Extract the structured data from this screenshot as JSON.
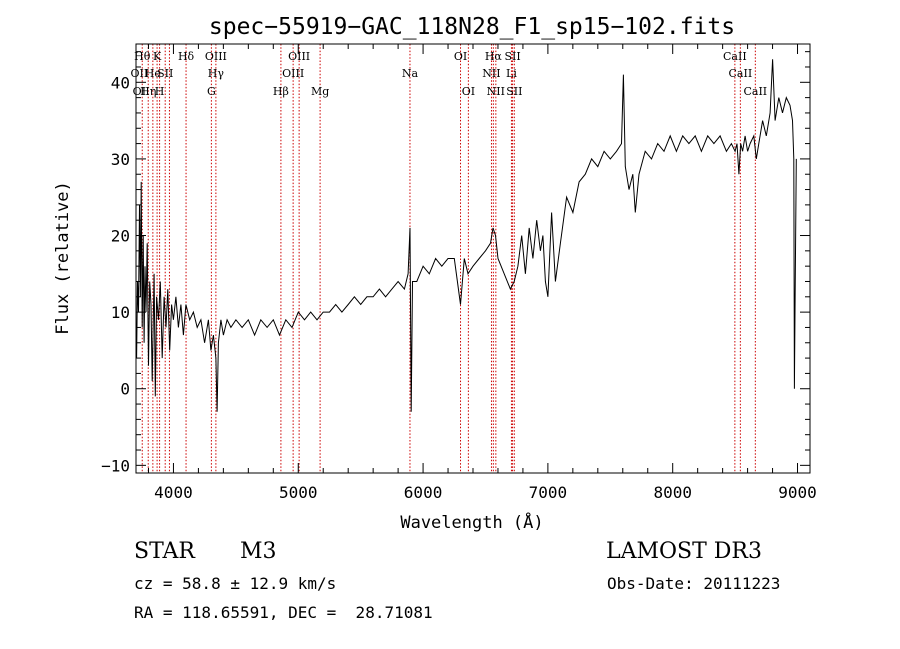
{
  "chart_data": {
    "type": "line",
    "title": "spec−55919−GAC_118N28_F1_sp15−102.fits",
    "xlabel": "Wavelength (Å)",
    "ylabel": "Flux (relative)",
    "xlim": [
      3700,
      9100
    ],
    "ylim": [
      -11,
      45
    ],
    "xticks": [
      {
        "value": 4000,
        "label": "4000"
      },
      {
        "value": 5000,
        "label": "5000"
      },
      {
        "value": 6000,
        "label": "6000"
      },
      {
        "value": 7000,
        "label": "7000"
      },
      {
        "value": 8000,
        "label": "8000"
      },
      {
        "value": 9000,
        "label": "9000"
      }
    ],
    "yticks": [
      {
        "value": -10,
        "label": "−10"
      },
      {
        "value": 0,
        "label": "0"
      },
      {
        "value": 10,
        "label": "10"
      },
      {
        "value": 20,
        "label": "20"
      },
      {
        "value": 30,
        "label": "30"
      },
      {
        "value": 40,
        "label": "40"
      }
    ],
    "line_color": "#000000",
    "marker_color": "#cc0000",
    "grid": false,
    "series": [
      {
        "values": [
          [
            3705,
            4
          ],
          [
            3712,
            14
          ],
          [
            3720,
            10
          ],
          [
            3728,
            24
          ],
          [
            3735,
            12
          ],
          [
            3742,
            27
          ],
          [
            3750,
            8
          ],
          [
            3758,
            20
          ],
          [
            3765,
            6
          ],
          [
            3772,
            16
          ],
          [
            3780,
            10
          ],
          [
            3790,
            19
          ],
          [
            3800,
            3
          ],
          [
            3810,
            14
          ],
          [
            3820,
            11
          ],
          [
            3830,
            1
          ],
          [
            3845,
            15
          ],
          [
            3855,
            -1
          ],
          [
            3865,
            12
          ],
          [
            3880,
            9
          ],
          [
            3895,
            14
          ],
          [
            3910,
            4
          ],
          [
            3925,
            12
          ],
          [
            3940,
            8
          ],
          [
            3955,
            13
          ],
          [
            3970,
            5
          ],
          [
            3985,
            11
          ],
          [
            4000,
            9
          ],
          [
            4020,
            12
          ],
          [
            4040,
            8
          ],
          [
            4060,
            11
          ],
          [
            4080,
            7
          ],
          [
            4100,
            11
          ],
          [
            4130,
            9
          ],
          [
            4160,
            10
          ],
          [
            4190,
            8
          ],
          [
            4220,
            9
          ],
          [
            4250,
            6
          ],
          [
            4280,
            9
          ],
          [
            4300,
            5
          ],
          [
            4320,
            7
          ],
          [
            4340,
            4
          ],
          [
            4350,
            -3
          ],
          [
            4360,
            6
          ],
          [
            4380,
            9
          ],
          [
            4400,
            7
          ],
          [
            4430,
            9
          ],
          [
            4460,
            8
          ],
          [
            4500,
            9
          ],
          [
            4550,
            8
          ],
          [
            4600,
            9
          ],
          [
            4650,
            7
          ],
          [
            4700,
            9
          ],
          [
            4750,
            8
          ],
          [
            4800,
            9
          ],
          [
            4850,
            7
          ],
          [
            4900,
            9
          ],
          [
            4950,
            8
          ],
          [
            5000,
            10
          ],
          [
            5050,
            9
          ],
          [
            5100,
            10
          ],
          [
            5150,
            9
          ],
          [
            5200,
            10
          ],
          [
            5250,
            10
          ],
          [
            5300,
            11
          ],
          [
            5350,
            10
          ],
          [
            5400,
            11
          ],
          [
            5450,
            12
          ],
          [
            5500,
            11
          ],
          [
            5550,
            12
          ],
          [
            5600,
            12
          ],
          [
            5650,
            13
          ],
          [
            5700,
            12
          ],
          [
            5750,
            13
          ],
          [
            5800,
            14
          ],
          [
            5850,
            13
          ],
          [
            5880,
            15
          ],
          [
            5895,
            21
          ],
          [
            5905,
            -3
          ],
          [
            5915,
            14
          ],
          [
            5950,
            14
          ],
          [
            6000,
            16
          ],
          [
            6050,
            15
          ],
          [
            6100,
            17
          ],
          [
            6150,
            16
          ],
          [
            6200,
            17
          ],
          [
            6250,
            17
          ],
          [
            6300,
            11
          ],
          [
            6330,
            17
          ],
          [
            6360,
            15
          ],
          [
            6400,
            16
          ],
          [
            6450,
            17
          ],
          [
            6500,
            18
          ],
          [
            6540,
            19
          ],
          [
            6560,
            21
          ],
          [
            6580,
            20
          ],
          [
            6600,
            17
          ],
          [
            6650,
            15
          ],
          [
            6700,
            13
          ],
          [
            6730,
            14
          ],
          [
            6760,
            16
          ],
          [
            6790,
            20
          ],
          [
            6820,
            15
          ],
          [
            6850,
            21
          ],
          [
            6880,
            17
          ],
          [
            6910,
            22
          ],
          [
            6940,
            18
          ],
          [
            6960,
            20
          ],
          [
            6980,
            14
          ],
          [
            7000,
            12
          ],
          [
            7030,
            23
          ],
          [
            7060,
            14
          ],
          [
            7100,
            19
          ],
          [
            7150,
            25
          ],
          [
            7200,
            23
          ],
          [
            7250,
            27
          ],
          [
            7300,
            28
          ],
          [
            7350,
            30
          ],
          [
            7400,
            29
          ],
          [
            7450,
            31
          ],
          [
            7500,
            30
          ],
          [
            7550,
            31
          ],
          [
            7590,
            32
          ],
          [
            7605,
            41
          ],
          [
            7620,
            29
          ],
          [
            7650,
            26
          ],
          [
            7680,
            28
          ],
          [
            7700,
            23
          ],
          [
            7730,
            28
          ],
          [
            7780,
            31
          ],
          [
            7830,
            30
          ],
          [
            7880,
            32
          ],
          [
            7930,
            31
          ],
          [
            7980,
            33
          ],
          [
            8030,
            31
          ],
          [
            8080,
            33
          ],
          [
            8130,
            32
          ],
          [
            8180,
            33
          ],
          [
            8230,
            31
          ],
          [
            8280,
            33
          ],
          [
            8330,
            32
          ],
          [
            8380,
            33
          ],
          [
            8430,
            31
          ],
          [
            8470,
            32
          ],
          [
            8500,
            31
          ],
          [
            8515,
            32
          ],
          [
            8530,
            28
          ],
          [
            8545,
            32
          ],
          [
            8560,
            31
          ],
          [
            8580,
            33
          ],
          [
            8600,
            31
          ],
          [
            8620,
            32
          ],
          [
            8650,
            33
          ],
          [
            8670,
            30
          ],
          [
            8690,
            32
          ],
          [
            8720,
            35
          ],
          [
            8750,
            33
          ],
          [
            8780,
            36
          ],
          [
            8800,
            43
          ],
          [
            8820,
            35
          ],
          [
            8850,
            38
          ],
          [
            8880,
            36
          ],
          [
            8910,
            38
          ],
          [
            8940,
            37
          ],
          [
            8960,
            35
          ],
          [
            8970,
            30
          ],
          [
            8975,
            0
          ],
          [
            8980,
            10
          ],
          [
            8990,
            30
          ]
        ]
      }
    ],
    "line_markers": [
      {
        "x": 3750,
        "labels": [
          "Hθ",
          "OII"
        ]
      },
      {
        "x": 3798,
        "labels": [
          "Hη"
        ]
      },
      {
        "x": 3835,
        "labels": [
          "He"
        ]
      },
      {
        "x": 3869,
        "labels": [
          "K"
        ]
      },
      {
        "x": 3889,
        "labels": [
          "H"
        ]
      },
      {
        "x": 3934,
        "labels": [
          "SII"
        ]
      },
      {
        "x": 3968,
        "labels": []
      },
      {
        "x": 4101,
        "labels": [
          "Hδ"
        ]
      },
      {
        "x": 4304,
        "labels": [
          "G"
        ]
      },
      {
        "x": 4340,
        "labels": [
          "Hγ",
          "OIII"
        ]
      },
      {
        "x": 4861,
        "labels": [
          "Hβ"
        ]
      },
      {
        "x": 4959,
        "labels": [
          "OIII"
        ]
      },
      {
        "x": 5007,
        "labels": [
          "OIII"
        ]
      },
      {
        "x": 5175,
        "labels": [
          "Mg"
        ]
      },
      {
        "x": 5895,
        "labels": [
          "Na"
        ]
      },
      {
        "x": 6300,
        "labels": [
          "OI"
        ]
      },
      {
        "x": 6363,
        "labels": [
          "OI"
        ]
      },
      {
        "x": 6548,
        "labels": [
          "NII"
        ]
      },
      {
        "x": 6563,
        "labels": [
          "Hα"
        ]
      },
      {
        "x": 6583,
        "labels": [
          "NII"
        ]
      },
      {
        "x": 6708,
        "labels": [
          "Li"
        ]
      },
      {
        "x": 6717,
        "labels": [
          "SII"
        ]
      },
      {
        "x": 6731,
        "labels": [
          "SII"
        ]
      },
      {
        "x": 8498,
        "labels": [
          "CaII"
        ]
      },
      {
        "x": 8542,
        "labels": [
          "CaII"
        ]
      },
      {
        "x": 8662,
        "labels": [
          "CaII"
        ]
      }
    ],
    "marker_labels": [
      {
        "text": "Hθ",
        "x": 3750,
        "row": 0
      },
      {
        "text": "K",
        "x": 3869,
        "row": 0
      },
      {
        "text": "Hδ",
        "x": 4101,
        "row": 0
      },
      {
        "text": "OIII",
        "x": 4340,
        "row": 0
      },
      {
        "text": "OIII",
        "x": 5007,
        "row": 0
      },
      {
        "text": "OI",
        "x": 6300,
        "row": 0
      },
      {
        "text": "Hα",
        "x": 6563,
        "row": 0
      },
      {
        "text": "SII",
        "x": 6717,
        "row": 0
      },
      {
        "text": "CaII",
        "x": 8498,
        "row": 0
      },
      {
        "text": "OII",
        "x": 3727,
        "row": 1
      },
      {
        "text": "He",
        "x": 3835,
        "row": 1
      },
      {
        "text": "SII",
        "x": 3934,
        "row": 1
      },
      {
        "text": "Hγ",
        "x": 4340,
        "row": 1
      },
      {
        "text": "OIII",
        "x": 4959,
        "row": 1
      },
      {
        "text": "Na",
        "x": 5895,
        "row": 1
      },
      {
        "text": "NII",
        "x": 6548,
        "row": 1
      },
      {
        "text": "Li",
        "x": 6708,
        "row": 1
      },
      {
        "text": "CaII",
        "x": 8542,
        "row": 1
      },
      {
        "text": "OI",
        "x": 3727,
        "row": 2
      },
      {
        "text": "Hη",
        "x": 3798,
        "row": 2
      },
      {
        "text": "H",
        "x": 3889,
        "row": 2
      },
      {
        "text": "G",
        "x": 4304,
        "row": 2
      },
      {
        "text": "Hβ",
        "x": 4861,
        "row": 2
      },
      {
        "text": "Mg",
        "x": 5175,
        "row": 2
      },
      {
        "text": "OI",
        "x": 6363,
        "row": 2
      },
      {
        "text": "NII",
        "x": 6583,
        "row": 2
      },
      {
        "text": "SII",
        "x": 6731,
        "row": 2
      },
      {
        "text": "CaII",
        "x": 8662,
        "row": 2
      }
    ]
  },
  "info": {
    "class_label": "STAR",
    "subclass": "M3",
    "survey": "LAMOST DR3",
    "redshift": "cz = 58.8 ± 12.9 km/s",
    "obs_date": "Obs-Date: 20111223",
    "coords": "RA = 118.65591, DEC =  28.71081"
  }
}
